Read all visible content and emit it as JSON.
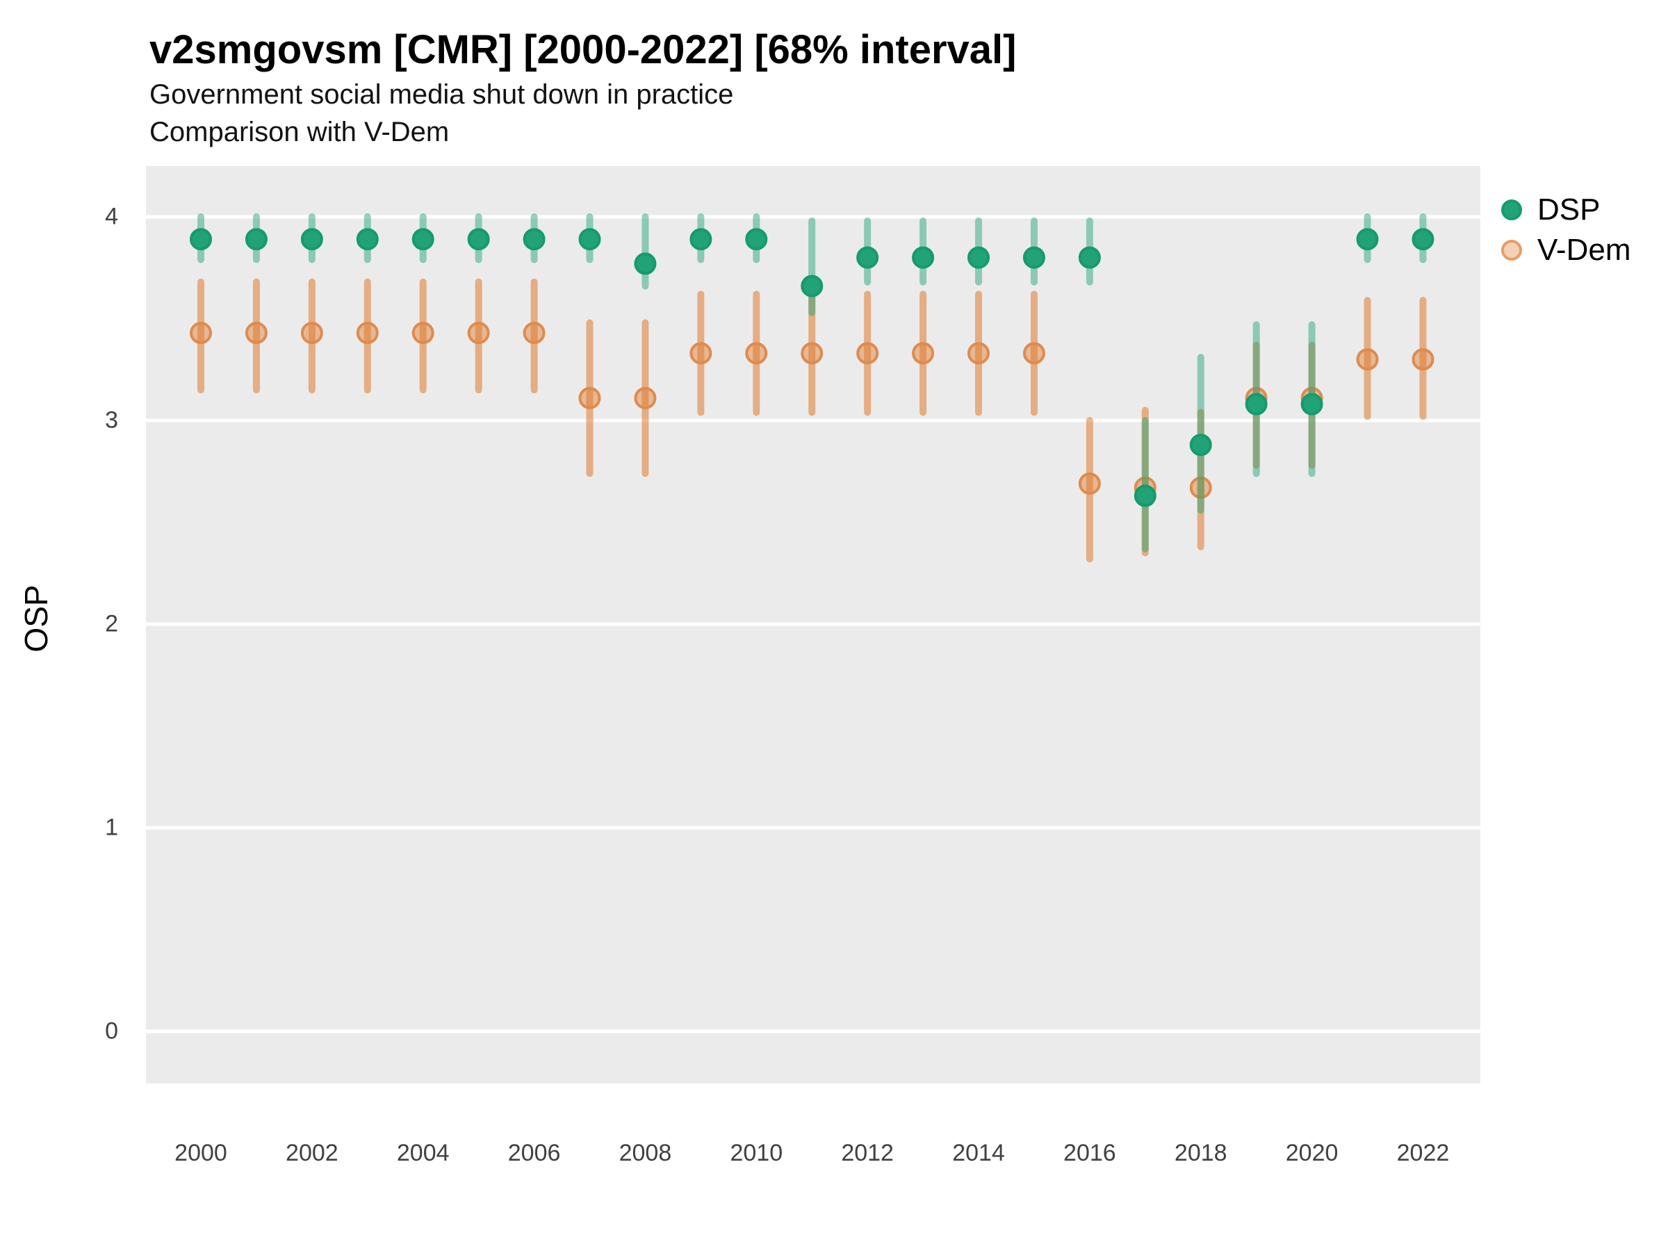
{
  "header": {
    "title": "v2smgovsm [CMR] [2000-2022] [68% interval]",
    "subtitle1": "Government social media shut down in practice",
    "subtitle2": "Comparison with V-Dem"
  },
  "axes": {
    "y_label": "OSP",
    "y_ticks": [
      4,
      3,
      2,
      1,
      0
    ],
    "x_tick_labels": [
      2000,
      2002,
      2004,
      2006,
      2008,
      2010,
      2012,
      2014,
      2016,
      2018,
      2020,
      2022
    ]
  },
  "legend": {
    "items": [
      "DSP",
      "V-Dem"
    ],
    "position": "right-top"
  },
  "chart_data": {
    "type": "scatter",
    "title": "v2smgovsm [CMR] [2000-2022] [68% interval]",
    "subtitle": [
      "Government social media shut down in practice",
      "Comparison with V-Dem"
    ],
    "interval_label": "68% interval",
    "xlabel": "",
    "ylabel": "OSP",
    "ylim": [
      -0.26,
      4.25
    ],
    "y_ticks": [
      0,
      1,
      2,
      3,
      4
    ],
    "x_tick_labels": [
      2000,
      2002,
      2004,
      2006,
      2008,
      2010,
      2012,
      2014,
      2016,
      2018,
      2020,
      2022
    ],
    "grid": "horizontal major gridlines only, white on gray panel",
    "panel_bg": "#EBEBEB",
    "grid_color": "#FFFFFF",
    "legend_position": "right-top",
    "x": [
      2000,
      2001,
      2002,
      2003,
      2004,
      2005,
      2006,
      2007,
      2008,
      2009,
      2010,
      2011,
      2012,
      2013,
      2014,
      2015,
      2016,
      2017,
      2018,
      2019,
      2020,
      2021,
      2022
    ],
    "series": [
      {
        "name": "DSP",
        "color": "#21A377",
        "point_stroke": "#169A6F",
        "point_style": "solid",
        "bar_opacity": 0.48,
        "mean": [
          3.89,
          3.89,
          3.89,
          3.89,
          3.89,
          3.89,
          3.89,
          3.89,
          3.77,
          3.89,
          3.89,
          3.66,
          3.8,
          3.8,
          3.8,
          3.8,
          3.8,
          2.63,
          2.88,
          3.08,
          3.08,
          3.89,
          3.89
        ],
        "lo": [
          3.79,
          3.79,
          3.79,
          3.79,
          3.79,
          3.79,
          3.79,
          3.79,
          3.66,
          3.79,
          3.79,
          3.53,
          3.68,
          3.68,
          3.68,
          3.68,
          3.68,
          2.37,
          2.56,
          2.74,
          2.74,
          3.79,
          3.79
        ],
        "hi": [
          4.0,
          4.0,
          4.0,
          4.0,
          4.0,
          4.0,
          4.0,
          4.0,
          4.0,
          4.0,
          4.0,
          3.98,
          3.98,
          3.98,
          3.98,
          3.98,
          3.98,
          3.0,
          3.31,
          3.47,
          3.47,
          4.0,
          4.0
        ]
      },
      {
        "name": "V-Dem",
        "color": "#DF7A2D",
        "point_stroke": "#DE8B4F",
        "point_style": "ring",
        "bar_opacity": 0.55,
        "mean": [
          3.43,
          3.43,
          3.43,
          3.43,
          3.43,
          3.43,
          3.43,
          3.11,
          3.11,
          3.33,
          3.33,
          3.33,
          3.33,
          3.33,
          3.33,
          3.33,
          2.69,
          2.67,
          2.67,
          3.11,
          3.11,
          3.3,
          3.3
        ],
        "lo": [
          3.15,
          3.15,
          3.15,
          3.15,
          3.15,
          3.15,
          3.15,
          2.74,
          2.74,
          3.04,
          3.04,
          3.04,
          3.04,
          3.04,
          3.04,
          3.04,
          2.32,
          2.35,
          2.38,
          2.78,
          2.78,
          3.02,
          3.02
        ],
        "hi": [
          3.68,
          3.68,
          3.68,
          3.68,
          3.68,
          3.68,
          3.68,
          3.48,
          3.48,
          3.62,
          3.62,
          3.62,
          3.62,
          3.62,
          3.62,
          3.62,
          3.0,
          3.05,
          3.04,
          3.37,
          3.37,
          3.59,
          3.59
        ]
      }
    ]
  }
}
